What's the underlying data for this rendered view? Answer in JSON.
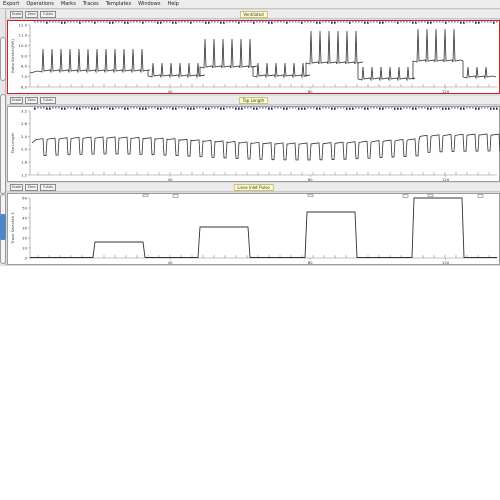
{
  "menubar": {
    "items": [
      "Export",
      "Operations",
      "Marks",
      "Traces",
      "Templates",
      "Windows",
      "Help"
    ]
  },
  "channels": [
    {
      "title": "Ventilated",
      "buttons": [
        "Scale",
        "Zero",
        "Y-Axis"
      ],
      "ylabel": "Ratio Stretch(RPI)",
      "accent": "#d02020",
      "yticks": [
        "12.0",
        "11.0",
        "10.0",
        "9.0",
        "8.0",
        "7.0",
        "6.0"
      ],
      "xticks": [
        "40",
        "80",
        "120"
      ]
    },
    {
      "title": "Tap Length",
      "buttons": [
        "Scale",
        "Zero",
        "Y-Axis"
      ],
      "ylabel": "Tap Length",
      "accent": "#1a1a6e",
      "yticks": [
        "3.2",
        "2.8",
        "2.4",
        "2.0",
        "1.6",
        "1.2"
      ],
      "xticks": [
        "40",
        "80",
        "120"
      ]
    },
    {
      "title": "Lines Inlet Pulse",
      "buttons": [
        "Scale",
        "Zero",
        "Y-Axis"
      ],
      "ylabel": "Trace Selected 3",
      "accent": "#1a1a6e",
      "yticks": [
        "60",
        "50",
        "40",
        "30",
        "20",
        "10",
        "0"
      ],
      "xticks": [
        "40",
        "80",
        "120"
      ]
    }
  ],
  "colors": {
    "trace": "#333333",
    "active_strip": "#4f86c6",
    "header_bg": "#ececec",
    "title_bg": "#fffcd0"
  }
}
